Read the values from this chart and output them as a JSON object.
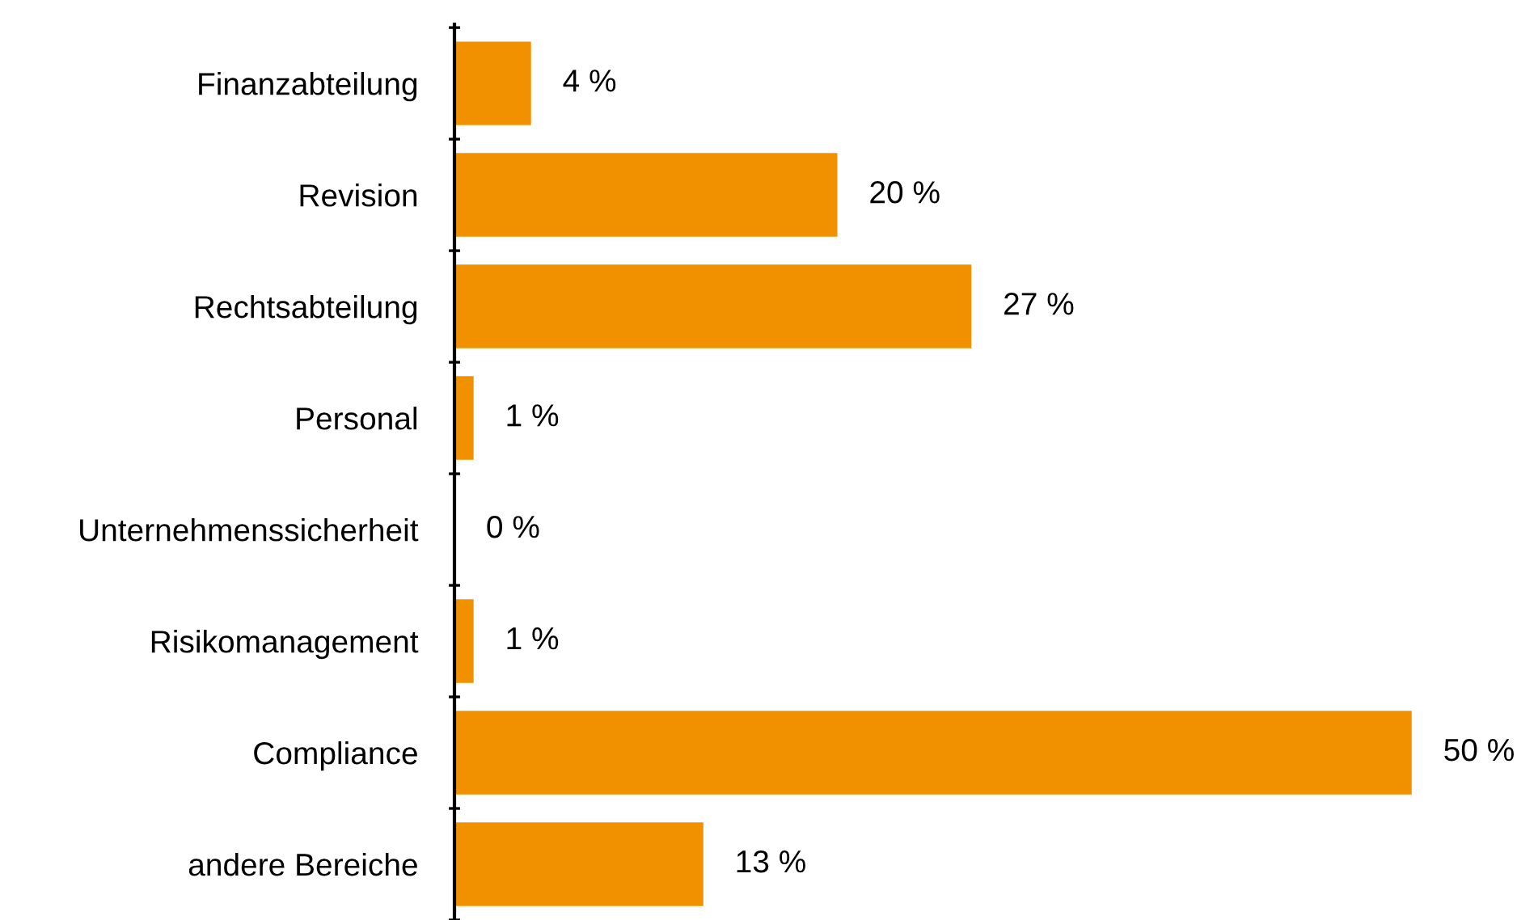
{
  "chart_data": {
    "type": "bar",
    "orientation": "horizontal",
    "categories": [
      "Finanzabteilung",
      "Revision",
      "Rechtsabteilung",
      "Personal",
      "Unternehmenssicherheit",
      "Risikomanagement",
      "Compliance",
      "andere Bereiche"
    ],
    "values": [
      4,
      20,
      27,
      1,
      0,
      1,
      50,
      13
    ],
    "value_labels": [
      "4 %",
      "20 %",
      "27 %",
      "1 %",
      "0 %",
      "1 %",
      "50 %",
      "13 %"
    ],
    "color": "#f29100",
    "grid": false,
    "legend": false
  }
}
